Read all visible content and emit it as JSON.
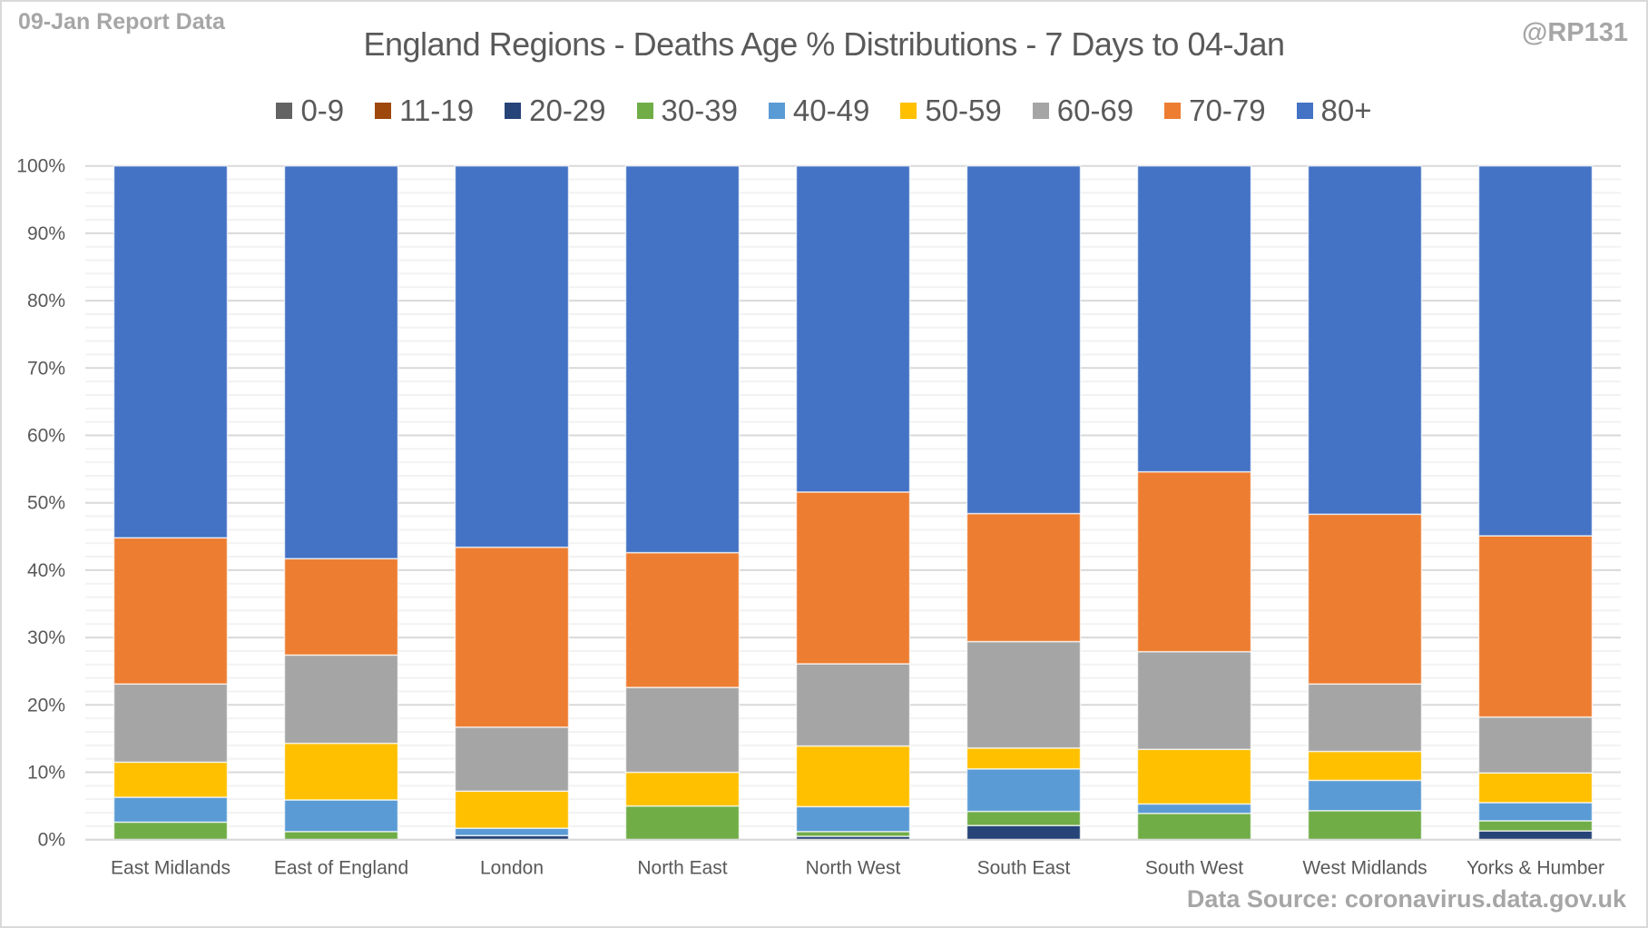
{
  "header": {
    "corner_note": "09-Jan Report Data",
    "handle": "@RP131"
  },
  "footer": {
    "source": "Data Source: coronavirus.data.gov.uk"
  },
  "chart_data": {
    "type": "bar",
    "stacked": true,
    "percent_stacked": true,
    "title": "England Regions - Deaths Age % Distributions - 7 Days to 04-Jan",
    "xlabel": "",
    "ylabel": "",
    "ylim": [
      0,
      100
    ],
    "y_ticks": [
      "0%",
      "10%",
      "20%",
      "30%",
      "40%",
      "50%",
      "60%",
      "70%",
      "80%",
      "90%",
      "100%"
    ],
    "y_tick_values": [
      0,
      10,
      20,
      30,
      40,
      50,
      60,
      70,
      80,
      90,
      100
    ],
    "grid": true,
    "legend_position": "top",
    "categories": [
      "East Midlands",
      "East of England",
      "London",
      "North East",
      "North West",
      "South East",
      "South West",
      "West Midlands",
      "Yorks & Humber"
    ],
    "series": [
      {
        "name": "0-9",
        "color": "#636363",
        "values": [
          0,
          0,
          0,
          0,
          0,
          0,
          0,
          0,
          0
        ]
      },
      {
        "name": "11-19",
        "color": "#9e480e",
        "values": [
          0,
          0,
          0,
          0,
          0,
          0,
          0,
          0,
          0
        ]
      },
      {
        "name": "20-29",
        "color": "#264478",
        "values": [
          0,
          0,
          0.6,
          0,
          0.5,
          2.1,
          0,
          0,
          1.3
        ]
      },
      {
        "name": "30-39",
        "color": "#70ad47",
        "values": [
          2.6,
          1.2,
          0,
          5.0,
          0.7,
          2.1,
          3.9,
          4.3,
          1.5
        ]
      },
      {
        "name": "40-49",
        "color": "#5b9bd5",
        "values": [
          3.7,
          4.7,
          1.1,
          0,
          3.7,
          6.3,
          1.4,
          4.5,
          2.7
        ]
      },
      {
        "name": "50-59",
        "color": "#ffc000",
        "values": [
          5.2,
          8.4,
          5.5,
          5.0,
          9.0,
          3.1,
          8.1,
          4.3,
          4.4
        ]
      },
      {
        "name": "60-69",
        "color": "#a5a5a5",
        "values": [
          11.6,
          13.1,
          9.5,
          12.6,
          12.2,
          15.8,
          14.5,
          10.0,
          8.3
        ]
      },
      {
        "name": "70-79",
        "color": "#ed7d31",
        "values": [
          21.7,
          14.3,
          26.7,
          20.0,
          25.5,
          19.0,
          26.7,
          25.2,
          26.9
        ]
      },
      {
        "name": "80+",
        "color": "#4472c4",
        "values": [
          55.2,
          58.3,
          56.6,
          57.4,
          48.4,
          51.6,
          45.4,
          51.7,
          54.9
        ]
      }
    ]
  }
}
